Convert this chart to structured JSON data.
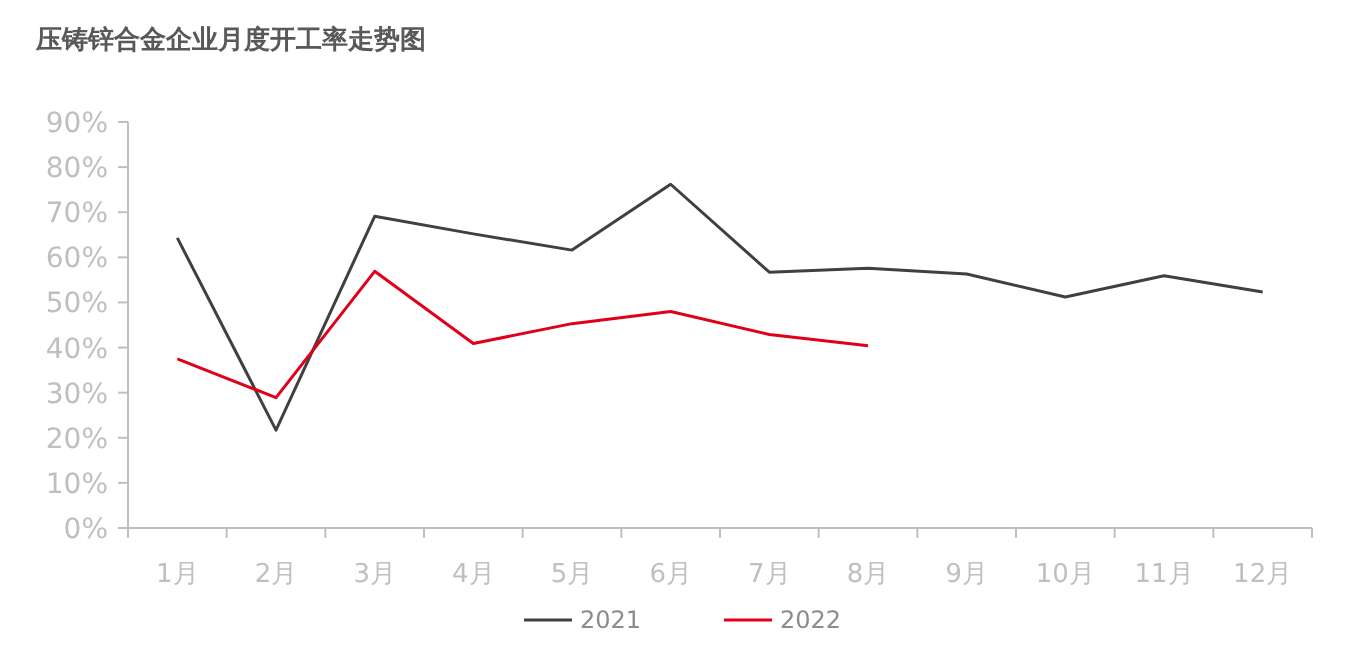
{
  "chart_data": {
    "type": "line",
    "title": "压铸锌合金企业月度开工率走势图",
    "categories": [
      "1月",
      "2月",
      "3月",
      "4月",
      "5月",
      "6月",
      "7月",
      "8月",
      "9月",
      "10月",
      "11月",
      "12月"
    ],
    "series": [
      {
        "name": "2021",
        "color": "#404040",
        "values": [
          64.3,
          21.7,
          69.1,
          65.2,
          61.6,
          76.2,
          56.7,
          57.6,
          56.3,
          51.2,
          55.9,
          52.3
        ]
      },
      {
        "name": "2022",
        "color": "#e0001b",
        "values": [
          37.5,
          28.9,
          56.9,
          40.9,
          45.3,
          48.0,
          42.9,
          40.4,
          null,
          null,
          null,
          null
        ]
      }
    ],
    "ylim": [
      0,
      90
    ],
    "yticks": [
      {
        "value": 0,
        "label": "0%"
      },
      {
        "value": 10,
        "label": "10%"
      },
      {
        "value": 20,
        "label": "20%"
      },
      {
        "value": 30,
        "label": "30%"
      },
      {
        "value": 40,
        "label": "40%"
      },
      {
        "value": 50,
        "label": "50%"
      },
      {
        "value": 60,
        "label": "60%"
      },
      {
        "value": 70,
        "label": "70%"
      },
      {
        "value": 80,
        "label": "80%"
      },
      {
        "value": 90,
        "label": "90%"
      }
    ],
    "grid": false,
    "legend": "bottom",
    "marker": "none",
    "line_style": "solid"
  }
}
